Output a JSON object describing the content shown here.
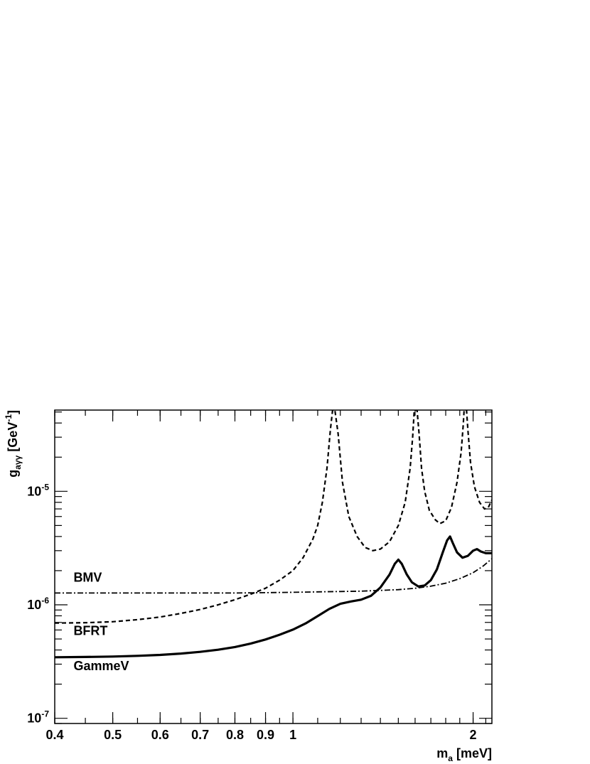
{
  "chart_data": {
    "type": "line",
    "title": "",
    "xlabel": {
      "main": "m",
      "sub": "a",
      "rest": " [meV]"
    },
    "ylabel": {
      "main": "g",
      "sub": "aγγ",
      "rest": " [GeV",
      "sup": "-1",
      "end": "]"
    },
    "x_scale": "log",
    "y_scale": "log",
    "xlim": [
      0.4,
      2.15
    ],
    "ylim": [
      9e-08,
      5.2e-05
    ],
    "x_ticks": [
      {
        "value": 0.4,
        "label": "0.4"
      },
      {
        "value": 0.5,
        "label": "0.5"
      },
      {
        "value": 0.6,
        "label": "0.6"
      },
      {
        "value": 0.7,
        "label": "0.7"
      },
      {
        "value": 0.8,
        "label": "0.8"
      },
      {
        "value": 0.9,
        "label": "0.9"
      },
      {
        "value": 1.0,
        "label": "1"
      },
      {
        "value": 2.0,
        "label": "2"
      }
    ],
    "y_ticks": [
      {
        "value": 1e-07,
        "base": "10",
        "exp": "-7"
      },
      {
        "value": 1e-06,
        "base": "10",
        "exp": "-6"
      },
      {
        "value": 1e-05,
        "base": "10",
        "exp": "-5"
      }
    ],
    "series": [
      {
        "name": "GammeV",
        "style": "solid",
        "points": [
          [
            0.4,
            3.45e-07
          ],
          [
            0.45,
            3.47e-07
          ],
          [
            0.5,
            3.5e-07
          ],
          [
            0.55,
            3.55e-07
          ],
          [
            0.6,
            3.62e-07
          ],
          [
            0.65,
            3.72e-07
          ],
          [
            0.7,
            3.85e-07
          ],
          [
            0.75,
            4.02e-07
          ],
          [
            0.8,
            4.25e-07
          ],
          [
            0.85,
            4.55e-07
          ],
          [
            0.9,
            4.95e-07
          ],
          [
            0.95,
            5.45e-07
          ],
          [
            1.0,
            6.05e-07
          ],
          [
            1.05,
            6.85e-07
          ],
          [
            1.1,
            7.95e-07
          ],
          [
            1.15,
            9.2e-07
          ],
          [
            1.2,
            1.02e-06
          ],
          [
            1.25,
            1.07e-06
          ],
          [
            1.3,
            1.11e-06
          ],
          [
            1.35,
            1.2e-06
          ],
          [
            1.4,
            1.42e-06
          ],
          [
            1.45,
            1.85e-06
          ],
          [
            1.48,
            2.3e-06
          ],
          [
            1.5,
            2.5e-06
          ],
          [
            1.52,
            2.3e-06
          ],
          [
            1.55,
            1.85e-06
          ],
          [
            1.58,
            1.58e-06
          ],
          [
            1.62,
            1.45e-06
          ],
          [
            1.66,
            1.48e-06
          ],
          [
            1.7,
            1.65e-06
          ],
          [
            1.74,
            2.05e-06
          ],
          [
            1.78,
            2.9e-06
          ],
          [
            1.81,
            3.7e-06
          ],
          [
            1.83,
            4e-06
          ],
          [
            1.85,
            3.5e-06
          ],
          [
            1.88,
            2.9e-06
          ],
          [
            1.92,
            2.6e-06
          ],
          [
            1.96,
            2.7e-06
          ],
          [
            2.0,
            3e-06
          ],
          [
            2.03,
            3.1e-06
          ],
          [
            2.06,
            2.95e-06
          ],
          [
            2.1,
            2.85e-06
          ],
          [
            2.15,
            2.85e-06
          ]
        ]
      },
      {
        "name": "BFRT",
        "style": "dashed",
        "points": [
          [
            0.4,
            6.9e-07
          ],
          [
            0.45,
            6.95e-07
          ],
          [
            0.5,
            7.1e-07
          ],
          [
            0.55,
            7.4e-07
          ],
          [
            0.6,
            7.8e-07
          ],
          [
            0.65,
            8.4e-07
          ],
          [
            0.7,
            9.1e-07
          ],
          [
            0.75,
            1e-06
          ],
          [
            0.8,
            1.11e-06
          ],
          [
            0.85,
            1.24e-06
          ],
          [
            0.9,
            1.4e-06
          ],
          [
            0.95,
            1.65e-06
          ],
          [
            1.0,
            2e-06
          ],
          [
            1.04,
            2.6e-06
          ],
          [
            1.08,
            3.8e-06
          ],
          [
            1.1,
            5e-06
          ],
          [
            1.12,
            8e-06
          ],
          [
            1.14,
            1.6e-05
          ],
          [
            1.155,
            3.5e-05
          ],
          [
            1.165,
            5.2e-05
          ],
          [
            1.175,
            5.2e-05
          ],
          [
            1.19,
            3.2e-05
          ],
          [
            1.21,
            1.2e-05
          ],
          [
            1.24,
            6e-06
          ],
          [
            1.28,
            4e-06
          ],
          [
            1.32,
            3.2e-06
          ],
          [
            1.36,
            3e-06
          ],
          [
            1.4,
            3.1e-06
          ],
          [
            1.45,
            3.6e-06
          ],
          [
            1.5,
            5e-06
          ],
          [
            1.54,
            8e-06
          ],
          [
            1.57,
            1.6e-05
          ],
          [
            1.585,
            3e-05
          ],
          [
            1.595,
            5.2e-05
          ],
          [
            1.612,
            5.2e-05
          ],
          [
            1.625,
            3.2e-05
          ],
          [
            1.64,
            1.6e-05
          ],
          [
            1.66,
            1e-05
          ],
          [
            1.69,
            6.8e-06
          ],
          [
            1.73,
            5.6e-06
          ],
          [
            1.76,
            5.2e-06
          ],
          [
            1.8,
            5.5e-06
          ],
          [
            1.84,
            7.2e-06
          ],
          [
            1.88,
            1.2e-05
          ],
          [
            1.91,
            2.2e-05
          ],
          [
            1.925,
            3.8e-05
          ],
          [
            1.932,
            5.2e-05
          ],
          [
            1.95,
            5.2e-05
          ],
          [
            1.96,
            3.5e-05
          ],
          [
            1.98,
            1.8e-05
          ],
          [
            2.01,
            1.1e-05
          ],
          [
            2.05,
            8e-06
          ],
          [
            2.09,
            7e-06
          ],
          [
            2.12,
            7.2e-06
          ],
          [
            2.15,
            8.4e-06
          ]
        ]
      },
      {
        "name": "BMV",
        "style": "dashdot",
        "points": [
          [
            0.4,
            1.27e-06
          ],
          [
            0.5,
            1.27e-06
          ],
          [
            0.6,
            1.27e-06
          ],
          [
            0.7,
            1.27e-06
          ],
          [
            0.8,
            1.27e-06
          ],
          [
            0.9,
            1.28e-06
          ],
          [
            1.0,
            1.29e-06
          ],
          [
            1.1,
            1.3e-06
          ],
          [
            1.2,
            1.31e-06
          ],
          [
            1.3,
            1.32e-06
          ],
          [
            1.4,
            1.34e-06
          ],
          [
            1.5,
            1.36e-06
          ],
          [
            1.6,
            1.4e-06
          ],
          [
            1.7,
            1.46e-06
          ],
          [
            1.8,
            1.55e-06
          ],
          [
            1.9,
            1.7e-06
          ],
          [
            2.0,
            1.92e-06
          ],
          [
            2.08,
            2.2e-06
          ],
          [
            2.15,
            2.55e-06
          ]
        ]
      }
    ],
    "annotations": [
      {
        "text": "BMV",
        "x": 0.43,
        "y": 1.6e-06
      },
      {
        "text": "BFRT",
        "x": 0.43,
        "y": 5.4e-07
      },
      {
        "text": "GammeV",
        "x": 0.43,
        "y": 2.65e-07
      }
    ],
    "grid": false,
    "legend": "none"
  }
}
